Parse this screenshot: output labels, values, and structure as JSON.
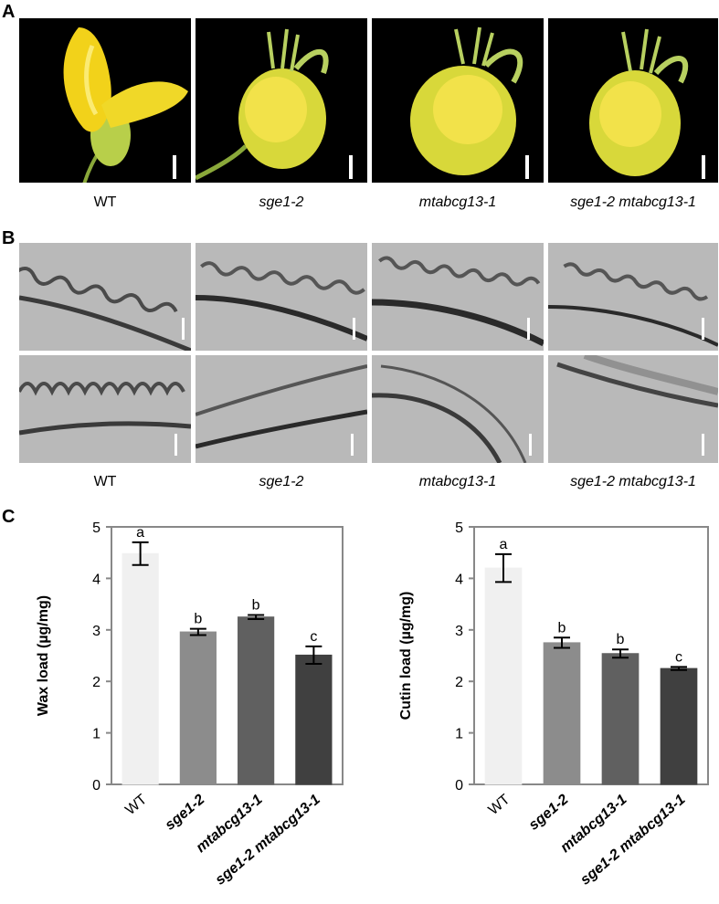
{
  "panels": {
    "a": "A",
    "b": "B",
    "c": "C"
  },
  "flower_labels": [
    "WT",
    "sge1-2",
    "mtabcg13-1",
    "sge1-2 mtabcg13-1"
  ],
  "tem_labels": [
    "WT",
    "sge1-2",
    "mtabcg13-1",
    "sge1-2 mtabcg13-1"
  ],
  "colors": {
    "petal_wt": "#f2d21a",
    "flower_body": "#e8e04a",
    "flower_green": "#a8c84a",
    "em_bg": "#b9b9b9",
    "bar_wt": "#f0f0f0",
    "bar_sge": "#8c8c8c",
    "bar_mt": "#606060",
    "bar_double": "#404040",
    "axis": "#888888"
  },
  "chart_data": [
    {
      "type": "bar",
      "categories": [
        "WT",
        "sge1-2",
        "mtabcg13-1",
        "sge1-2 mtabcg13-1"
      ],
      "values": [
        4.48,
        2.96,
        3.25,
        2.51
      ],
      "errors": [
        0.22,
        0.06,
        0.04,
        0.17
      ],
      "significance": [
        "a",
        "b",
        "b",
        "c"
      ],
      "title": "",
      "xlabel": "",
      "ylabel": "Wax load (µg/mg)",
      "ylim": [
        0,
        5
      ],
      "yticks": [
        0,
        1,
        2,
        3,
        4,
        5
      ]
    },
    {
      "type": "bar",
      "categories": [
        "WT",
        "sge1-2",
        "mtabcg13-1",
        "sge1-2 mtabcg13-1"
      ],
      "values": [
        4.2,
        2.75,
        2.54,
        2.25
      ],
      "errors": [
        0.27,
        0.1,
        0.08,
        0.03
      ],
      "significance": [
        "a",
        "b",
        "b",
        "c"
      ],
      "title": "",
      "xlabel": "",
      "ylabel": "Cutin load (µg/mg)",
      "ylim": [
        0,
        5
      ],
      "yticks": [
        0,
        1,
        2,
        3,
        4,
        5
      ]
    }
  ]
}
